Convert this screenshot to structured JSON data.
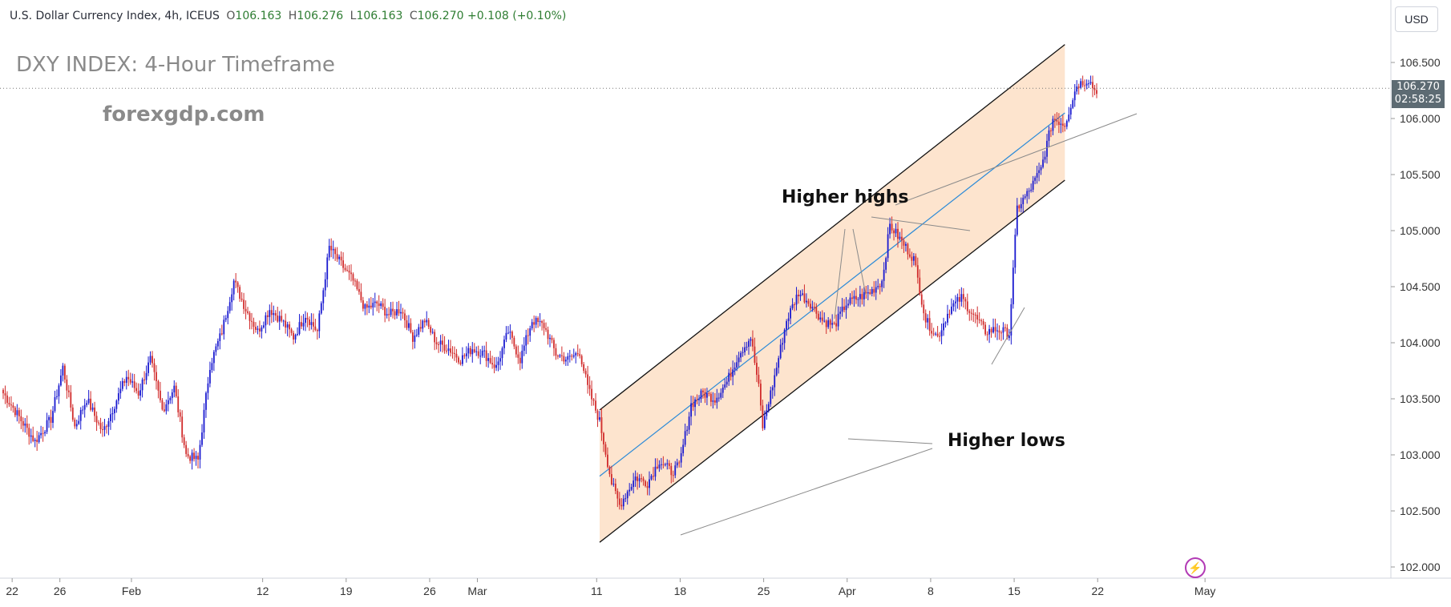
{
  "header": {
    "symbol_line": "U.S. Dollar Currency Index, 4h, ICEUS",
    "open_label": "O",
    "open": "106.163",
    "high_label": "H",
    "high": "106.276",
    "low_label": "L",
    "low": "106.163",
    "close_label": "C",
    "close": "106.270",
    "change": "+0.108 (+0.10%)"
  },
  "overlay": {
    "title": "DXY INDEX: 4-Hour Timeframe",
    "brand": "forexgdp.com",
    "currency": "USD",
    "price_tag": "106.270",
    "countdown": "02:58:25",
    "higher_highs": "Higher highs",
    "higher_lows": "Higher lows"
  },
  "colors": {
    "up": "#1a1ad0",
    "down": "#d12c2c",
    "channel_fill": "#fde1c9",
    "midline": "#2b8ad8",
    "axis_text": "#333333"
  },
  "chart_data": {
    "type": "candlestick",
    "ylim": [
      101.95,
      106.85
    ],
    "x_start": "Jan 21 06:00",
    "bar_interval": "4h",
    "y_ticks": [
      "106.500",
      "106.000",
      "105.500",
      "105.000",
      "104.500",
      "104.000",
      "103.500",
      "103.000",
      "102.500",
      "102.000"
    ],
    "x_ticks": [
      {
        "label": "22",
        "date": "Jan 22"
      },
      {
        "label": "26",
        "date": "Jan 26"
      },
      {
        "label": "Feb",
        "date": "Feb 1"
      },
      {
        "label": "12",
        "date": "Feb 12"
      },
      {
        "label": "19",
        "date": "Feb 19"
      },
      {
        "label": "26",
        "date": "Feb 26"
      },
      {
        "label": "Mar",
        "date": "Mar 1"
      },
      {
        "label": "11",
        "date": "Mar 11"
      },
      {
        "label": "18",
        "date": "Mar 18"
      },
      {
        "label": "25",
        "date": "Mar 25"
      },
      {
        "label": "Apr",
        "date": "Apr 1"
      },
      {
        "label": "8",
        "date": "Apr 8"
      },
      {
        "label": "15",
        "date": "Apr 15"
      },
      {
        "label": "22",
        "date": "Apr 22"
      },
      {
        "label": "May",
        "date": "May 1"
      }
    ],
    "anchors": [
      [
        0,
        103.55
      ],
      [
        5,
        103.42
      ],
      [
        10,
        103.28
      ],
      [
        16,
        103.12
      ],
      [
        24,
        103.32
      ],
      [
        30,
        103.78
      ],
      [
        36,
        103.25
      ],
      [
        42,
        103.5
      ],
      [
        50,
        103.2
      ],
      [
        56,
        103.45
      ],
      [
        62,
        103.7
      ],
      [
        68,
        103.55
      ],
      [
        74,
        103.85
      ],
      [
        80,
        103.4
      ],
      [
        86,
        103.6
      ],
      [
        92,
        103.0
      ],
      [
        98,
        102.95
      ],
      [
        104,
        103.8
      ],
      [
        110,
        104.1
      ],
      [
        116,
        104.55
      ],
      [
        122,
        104.3
      ],
      [
        128,
        104.1
      ],
      [
        134,
        104.3
      ],
      [
        140,
        104.2
      ],
      [
        146,
        104.05
      ],
      [
        152,
        104.25
      ],
      [
        158,
        104.1
      ],
      [
        164,
        104.85
      ],
      [
        170,
        104.7
      ],
      [
        176,
        104.55
      ],
      [
        182,
        104.3
      ],
      [
        188,
        104.35
      ],
      [
        194,
        104.25
      ],
      [
        200,
        104.3
      ],
      [
        206,
        104.05
      ],
      [
        212,
        104.2
      ],
      [
        218,
        104.0
      ],
      [
        224,
        103.95
      ],
      [
        230,
        103.85
      ],
      [
        236,
        103.95
      ],
      [
        242,
        103.9
      ],
      [
        248,
        103.78
      ],
      [
        254,
        104.1
      ],
      [
        260,
        103.85
      ],
      [
        266,
        104.2
      ],
      [
        272,
        104.15
      ],
      [
        278,
        103.9
      ],
      [
        284,
        103.85
      ],
      [
        290,
        103.92
      ],
      [
        294,
        103.6
      ],
      [
        300,
        103.3
      ],
      [
        306,
        102.75
      ],
      [
        310,
        102.55
      ],
      [
        318,
        102.8
      ],
      [
        324,
        102.75
      ],
      [
        330,
        102.95
      ],
      [
        336,
        102.85
      ],
      [
        340,
        102.9
      ],
      [
        346,
        103.45
      ],
      [
        352,
        103.55
      ],
      [
        358,
        103.5
      ],
      [
        364,
        103.65
      ],
      [
        370,
        103.9
      ],
      [
        376,
        104.05
      ],
      [
        380,
        103.6
      ],
      [
        382,
        103.25
      ],
      [
        388,
        103.7
      ],
      [
        394,
        104.2
      ],
      [
        400,
        104.45
      ],
      [
        406,
        104.35
      ],
      [
        412,
        104.2
      ],
      [
        418,
        104.15
      ],
      [
        424,
        104.35
      ],
      [
        430,
        104.4
      ],
      [
        436,
        104.45
      ],
      [
        442,
        104.55
      ],
      [
        446,
        105.05
      ],
      [
        452,
        104.9
      ],
      [
        458,
        104.75
      ],
      [
        464,
        104.2
      ],
      [
        470,
        104.05
      ],
      [
        476,
        104.3
      ],
      [
        482,
        104.4
      ],
      [
        488,
        104.25
      ],
      [
        494,
        104.1
      ],
      [
        500,
        104.12
      ],
      [
        506,
        104.08
      ],
      [
        510,
        105.2
      ],
      [
        516,
        105.35
      ],
      [
        522,
        105.55
      ],
      [
        528,
        106.0
      ],
      [
        534,
        105.95
      ],
      [
        540,
        106.3
      ],
      [
        546,
        106.35
      ],
      [
        550,
        106.22
      ]
    ],
    "series": [
      {
        "name": "Ascending channel",
        "type": "channel",
        "upper": [
          [
            "Mar 11 06:00",
            103.4
          ],
          [
            "Apr 19 06:00",
            106.66
          ]
        ],
        "lower": [
          [
            "Mar 11 06:00",
            102.22
          ],
          [
            "Apr 19 06:00",
            105.45
          ]
        ],
        "middle": [
          [
            "Mar 11 06:00",
            102.81
          ],
          [
            "Apr 19 06:00",
            106.05
          ]
        ]
      }
    ],
    "annotations": [
      "Higher highs",
      "Higher lows"
    ],
    "last_price": 106.27
  }
}
